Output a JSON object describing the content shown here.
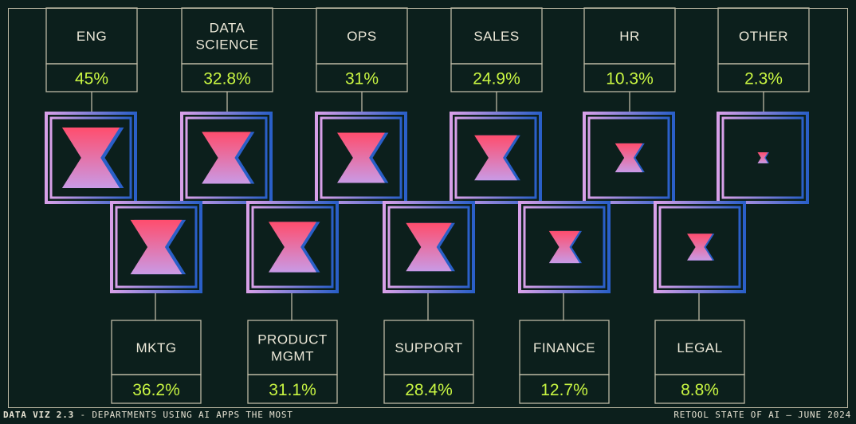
{
  "chart_data": {
    "type": "bar",
    "subtitle_code": "DATA VIZ 2.3",
    "title": "DEPARTMENTS USING AI APPS THE MOST",
    "source": "RETOOL STATE OF AI — JUNE 2024",
    "categories_top": [
      {
        "label": [
          "ENG"
        ],
        "value": 45,
        "display": "45%"
      },
      {
        "label": [
          "DATA",
          "SCIENCE"
        ],
        "value": 32.8,
        "display": "32.8%"
      },
      {
        "label": [
          "OPS"
        ],
        "value": 31,
        "display": "31%"
      },
      {
        "label": [
          "SALES"
        ],
        "value": 24.9,
        "display": "24.9%"
      },
      {
        "label": [
          "HR"
        ],
        "value": 10.3,
        "display": "10.3%"
      },
      {
        "label": [
          "OTHER"
        ],
        "value": 2.3,
        "display": "2.3%"
      }
    ],
    "categories_bottom": [
      {
        "label": [
          "MKTG"
        ],
        "value": 36.2,
        "display": "36.2%"
      },
      {
        "label": [
          "PRODUCT",
          "MGMT"
        ],
        "value": 31.1,
        "display": "31.1%"
      },
      {
        "label": [
          "SUPPORT"
        ],
        "value": 28.4,
        "display": "28.4%"
      },
      {
        "label": [
          "FINANCE"
        ],
        "value": 12.7,
        "display": "12.7%"
      },
      {
        "label": [
          "LEGAL"
        ],
        "value": 8.8,
        "display": "8.8%"
      }
    ],
    "colors": {
      "background": "#0c1f1c",
      "frame": "#bdb9a4",
      "value_text": "#c8f542",
      "label_text": "#ece8d8",
      "gradient_pink": "#d8a0e8",
      "gradient_blue": "#2a5fc8",
      "glyph_red": "#ff4d6d",
      "glyph_lilac": "#c99ae6"
    },
    "footer": {
      "left_code": "DATA VIZ 2.3",
      "left_sep": " - ",
      "left_text": "DEPARTMENTS USING AI APPS THE MOST",
      "right_text": "RETOOL STATE OF AI — JUNE 2024"
    }
  }
}
